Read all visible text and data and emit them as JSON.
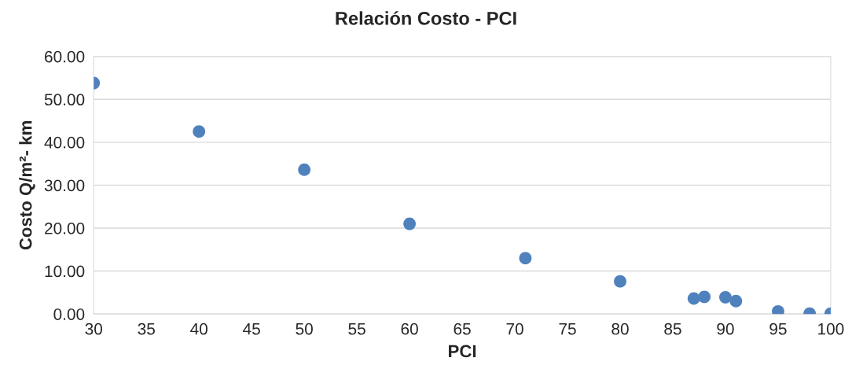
{
  "chart_data": {
    "type": "scatter",
    "title": "Relación Costo - PCI",
    "xlabel": "PCI",
    "ylabel": "Costo Q/m²- km",
    "x": [
      30,
      40,
      50,
      60,
      71,
      80,
      87,
      88,
      90,
      91,
      95,
      98,
      100
    ],
    "series": [
      {
        "color": "#4f81bd",
        "values": [
          53.8,
          42.5,
          33.6,
          21.0,
          13.0,
          7.6,
          3.6,
          4.0,
          3.9,
          3.0,
          0.6,
          0.1,
          0.1
        ]
      }
    ],
    "xlim": [
      30,
      100
    ],
    "xticks": [
      30,
      35,
      40,
      45,
      50,
      55,
      60,
      65,
      70,
      75,
      80,
      85,
      90,
      95,
      100
    ],
    "ylim": [
      0,
      60
    ],
    "yticks": [
      {
        "value": 0,
        "label": "0.00"
      },
      {
        "value": 10,
        "label": "10.00"
      },
      {
        "value": 20,
        "label": "20.00"
      },
      {
        "value": 30,
        "label": "30.00"
      },
      {
        "value": 40,
        "label": "40.00"
      },
      {
        "value": 50,
        "label": "50.00"
      },
      {
        "value": 60,
        "label": "60.00"
      }
    ],
    "grid": "y",
    "marker": "circle"
  }
}
